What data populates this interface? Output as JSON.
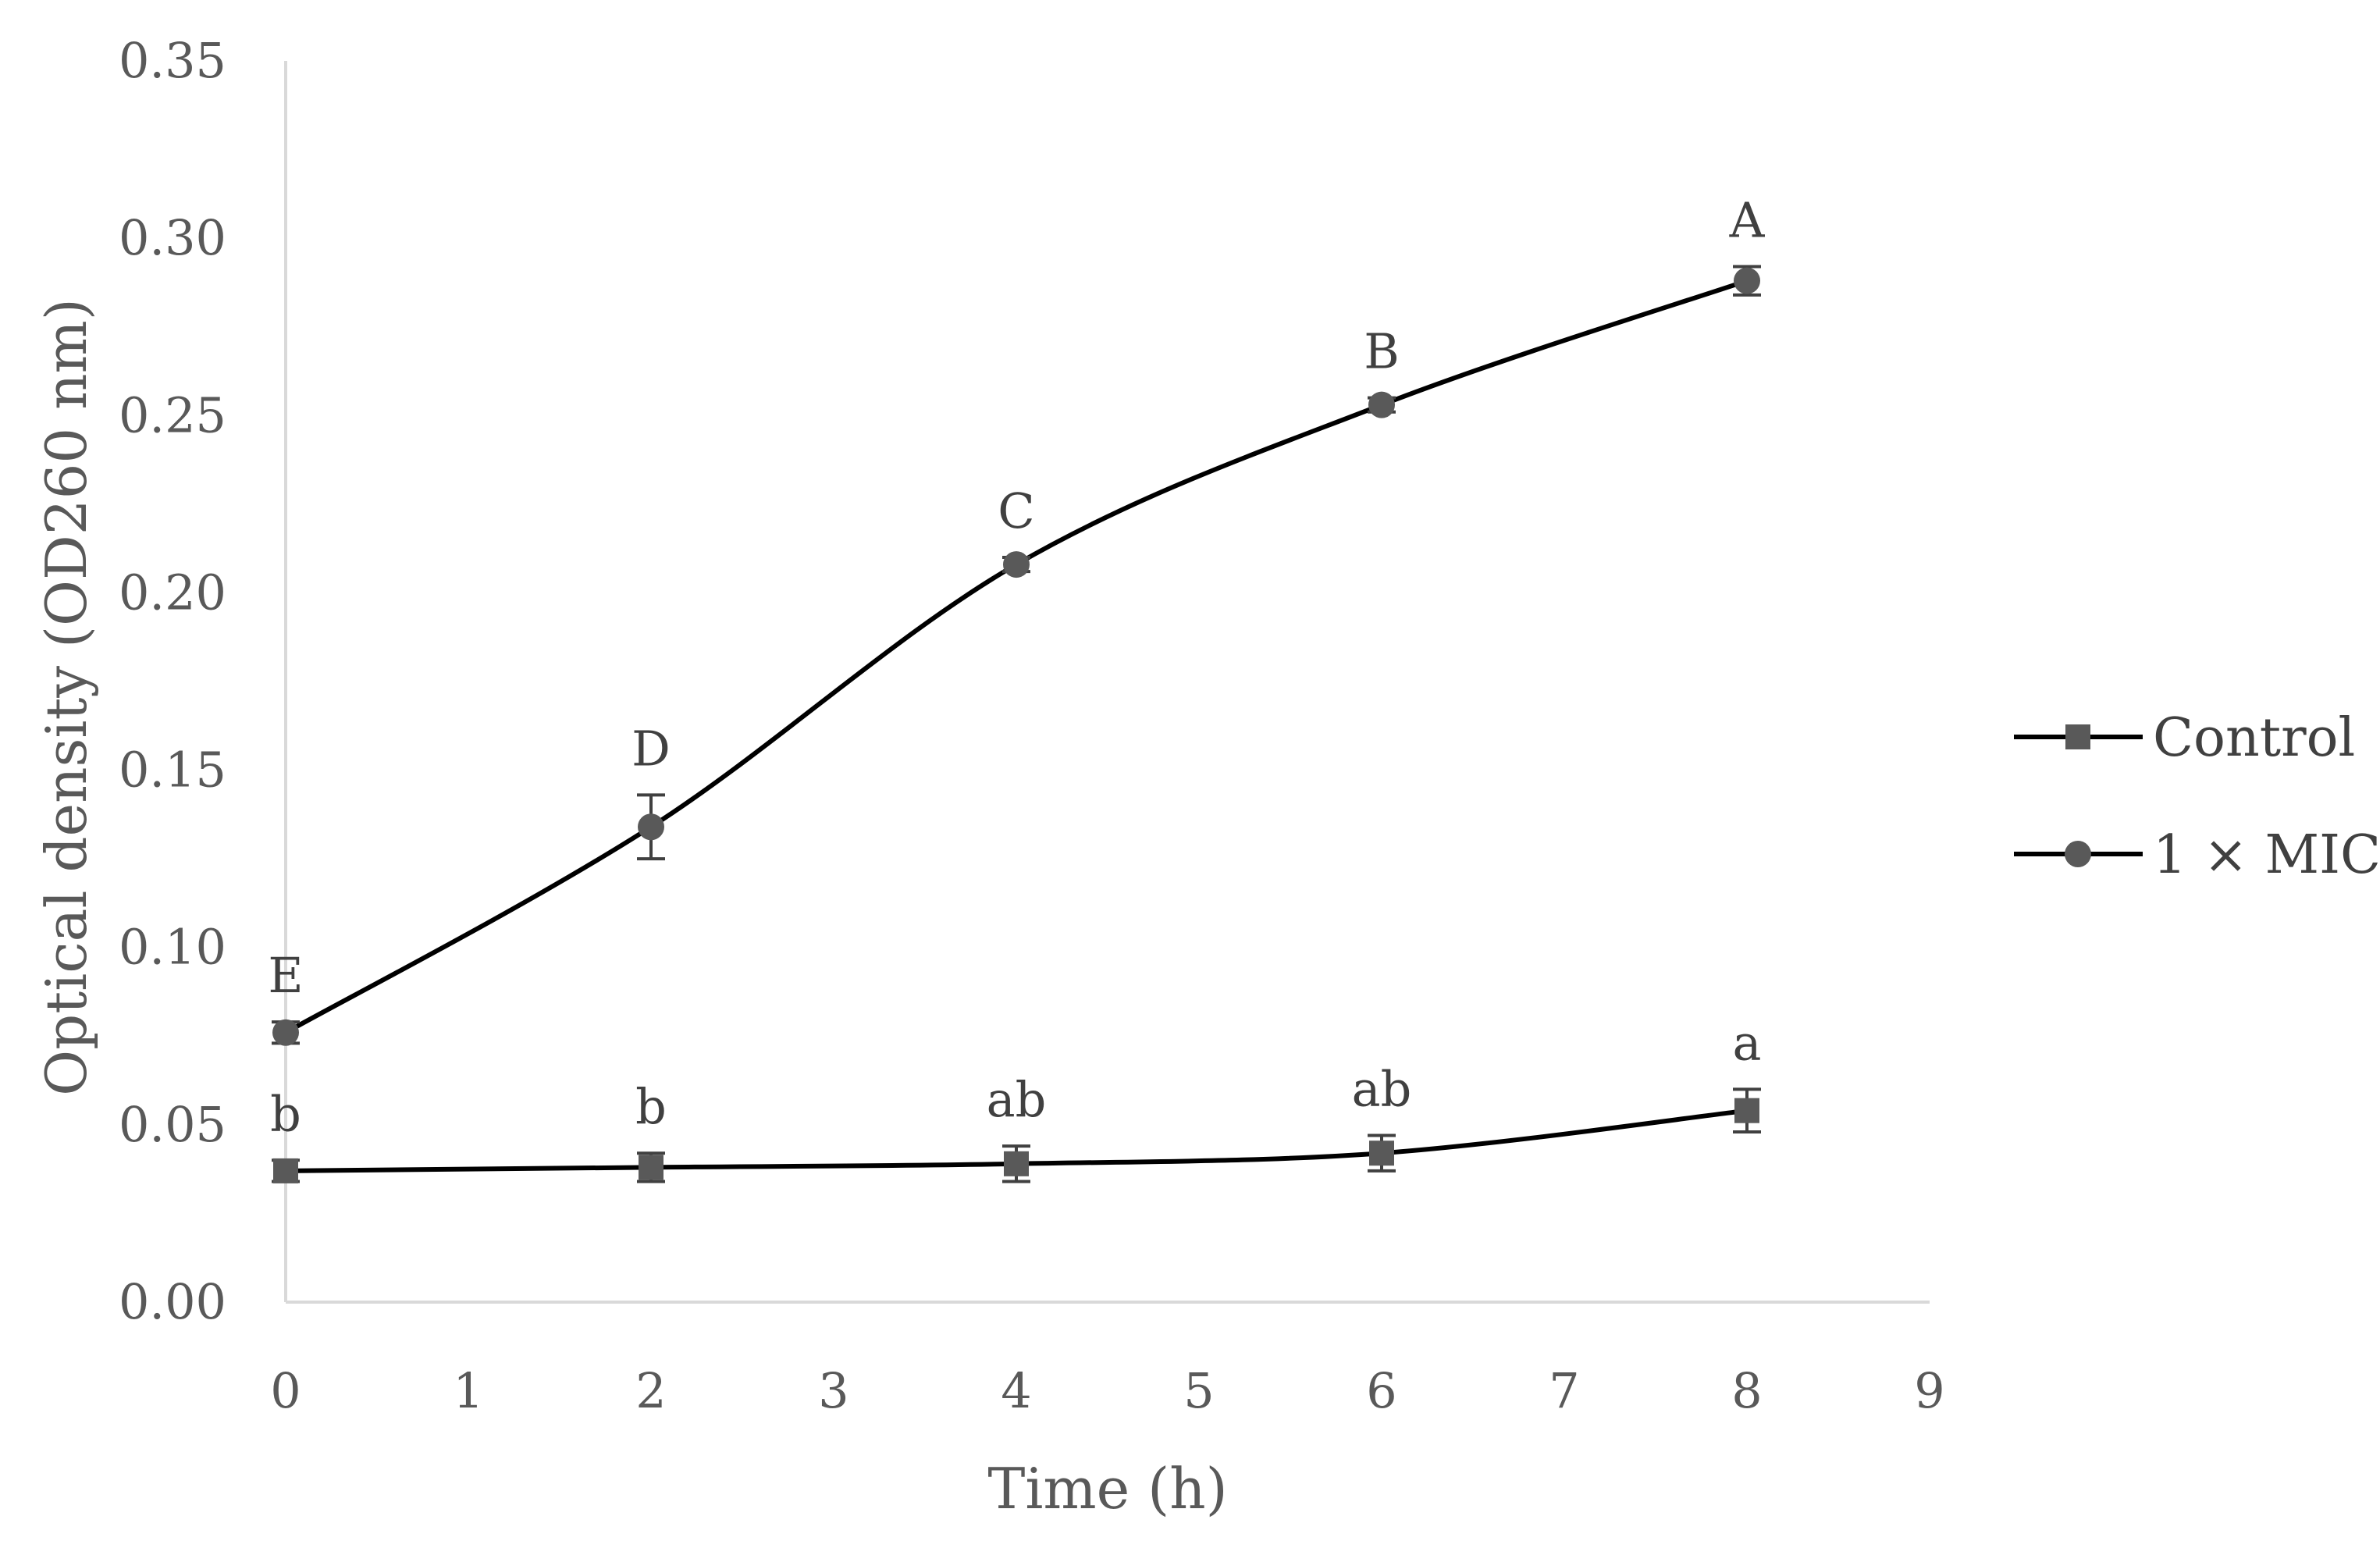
{
  "chart_data": {
    "type": "line",
    "title": "",
    "xlabel": "Time (h)",
    "ylabel": "Optical density (OD260 nm)",
    "xlim": [
      0,
      9
    ],
    "ylim": [
      0,
      0.35
    ],
    "x_ticks": [
      0,
      1,
      2,
      3,
      4,
      5,
      6,
      7,
      8,
      9
    ],
    "y_ticks": [
      "0.00",
      "0.05",
      "0.10",
      "0.15",
      "0.20",
      "0.25",
      "0.30",
      "0.35"
    ],
    "grid": false,
    "legend_position": "right",
    "series": [
      {
        "name": "Control",
        "marker": "square",
        "x": [
          0,
          2,
          4,
          6,
          8
        ],
        "values": [
          0.037,
          0.038,
          0.039,
          0.042,
          0.054
        ],
        "errors": [
          0.003,
          0.004,
          0.005,
          0.005,
          0.006
        ],
        "labels": [
          "b",
          "b",
          "ab",
          "ab",
          "a"
        ]
      },
      {
        "name": "1 × MIC",
        "marker": "circle",
        "x": [
          0,
          2,
          4,
          6,
          8
        ],
        "values": [
          0.076,
          0.134,
          0.208,
          0.253,
          0.288
        ],
        "errors": [
          0.003,
          0.009,
          0.002,
          0.002,
          0.004
        ],
        "labels": [
          "E",
          "D",
          "C",
          "B",
          "A"
        ]
      }
    ],
    "colors": {
      "line": "#000000",
      "marker": "#595959",
      "axis": "#d9d9d9",
      "text": "#595959"
    }
  }
}
